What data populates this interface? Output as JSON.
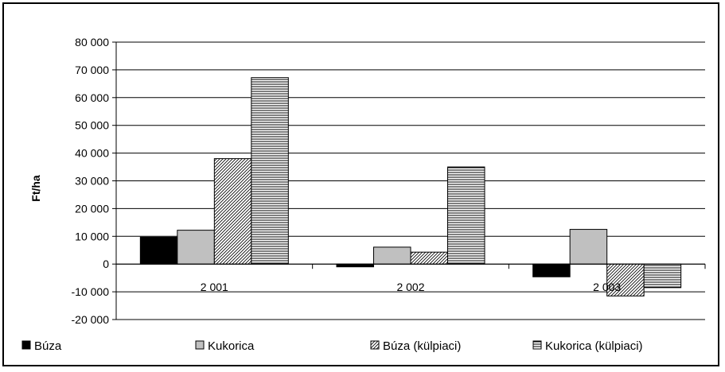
{
  "chart_data": {
    "type": "bar",
    "categories": [
      "2 001",
      "2 002",
      "2 003"
    ],
    "series": [
      {
        "name": "Búza",
        "values": [
          9700,
          -1000,
          -4600
        ],
        "color": "#000000",
        "pattern": "solid"
      },
      {
        "name": "Kukorica",
        "values": [
          12200,
          6100,
          12500
        ],
        "color": "#c0c0c0",
        "pattern": "solid"
      },
      {
        "name": "Búza (külpiaci)",
        "values": [
          38000,
          4300,
          -11500
        ],
        "color": "#ffffff",
        "pattern": "diagonal-hatch"
      },
      {
        "name": "Kukorica (külpiaci)",
        "values": [
          67200,
          35000,
          -8500
        ],
        "color": "#ffffff",
        "pattern": "horizontal-lines"
      }
    ],
    "ylabel": "Ft/ha",
    "xlabel": "",
    "ylim": [
      -20000,
      80000
    ],
    "yticks": [
      {
        "value": 80000,
        "label": "80 000"
      },
      {
        "value": 70000,
        "label": "70 000"
      },
      {
        "value": 60000,
        "label": "60 000"
      },
      {
        "value": 50000,
        "label": "50 000"
      },
      {
        "value": 40000,
        "label": "40 000"
      },
      {
        "value": 30000,
        "label": "30 000"
      },
      {
        "value": 20000,
        "label": "20 000"
      },
      {
        "value": 10000,
        "label": "10 000"
      },
      {
        "value": 0,
        "label": "0"
      },
      {
        "value": -10000,
        "label": "-10 000"
      },
      {
        "value": -20000,
        "label": "-20 000"
      }
    ],
    "grid": true,
    "legend_position": "bottom"
  }
}
